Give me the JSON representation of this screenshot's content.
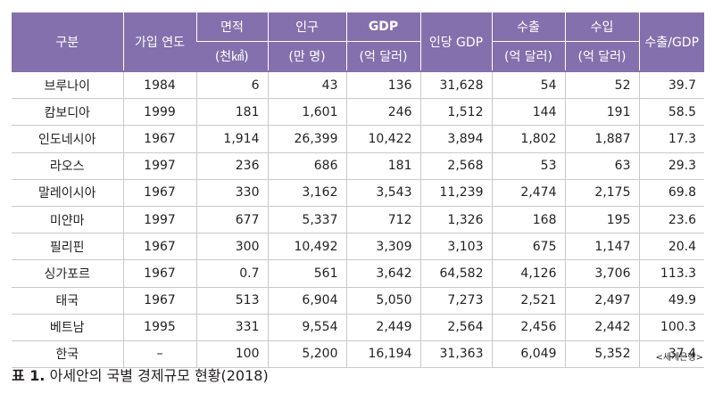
{
  "headers": {
    "category": "구분",
    "join_year": "가입 연도",
    "area_top": "면적",
    "area_unit": "(천㎢)",
    "pop_top": "인구",
    "pop_unit": "(만 명)",
    "gdp_top": "GDP",
    "gdp_unit": "(억 달러)",
    "gdp_per_capita": "인당 GDP",
    "export_top": "수출",
    "export_unit": "(억 달러)",
    "import_top": "수입",
    "import_unit": "(억 달러)",
    "export_gdp": "수출/GDP"
  },
  "rows": [
    [
      "브루나이",
      "1984",
      "6",
      "43",
      "136",
      "31,628",
      "54",
      "52",
      "39.7"
    ],
    [
      "캄보디아",
      "1999",
      "181",
      "1,601",
      "246",
      "1,512",
      "144",
      "191",
      "58.5"
    ],
    [
      "인도네시아",
      "1967",
      "1,914",
      "26,399",
      "10,422",
      "3,894",
      "1,802",
      "1,887",
      "17.3"
    ],
    [
      "라오스",
      "1997",
      "236",
      "686",
      "181",
      "2,568",
      "53",
      "63",
      "29.3"
    ],
    [
      "말레이시아",
      "1967",
      "330",
      "3,162",
      "3,543",
      "11,239",
      "2,474",
      "2,175",
      "69.8"
    ],
    [
      "미얀마",
      "1997",
      "677",
      "5,337",
      "712",
      "1,326",
      "168",
      "195",
      "23.6"
    ],
    [
      "필리핀",
      "1967",
      "300",
      "10,492",
      "3,309",
      "3,103",
      "675",
      "1,147",
      "20.4"
    ],
    [
      "싱가포르",
      "1967",
      "0.7",
      "561",
      "3,642",
      "64,582",
      "4,126",
      "3,706",
      "113.3"
    ],
    [
      "태국",
      "1967",
      "513",
      "6,904",
      "5,050",
      "7,273",
      "2,521",
      "2,497",
      "49.9"
    ],
    [
      "베트남",
      "1995",
      "331",
      "9,554",
      "2,449",
      "2,564",
      "2,456",
      "2,442",
      "100.3"
    ],
    [
      "한국",
      "–",
      "100",
      "5,200",
      "16,194",
      "31,363",
      "6,049",
      "5,352",
      "37.4"
    ]
  ],
  "source": "<세계은행>",
  "caption": {
    "label": "표 1.",
    "title": "아세안의 국별 경제규모 현황(2018)"
  },
  "colors": {
    "header_bg": "#8470ad",
    "header_text": "#ffffff",
    "grid": "#c9c9c9"
  }
}
